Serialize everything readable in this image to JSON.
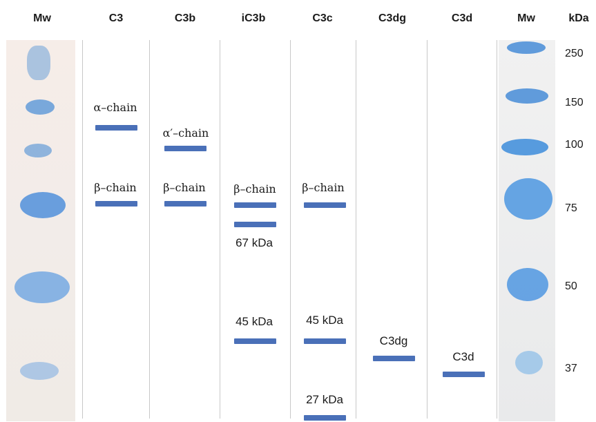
{
  "headers": {
    "mw_left": "Mw",
    "c3": "C3",
    "c3b": "C3b",
    "ic3b": "iC3b",
    "c3c": "C3c",
    "c3dg": "C3dg",
    "c3d": "C3d",
    "mw_right": "Mw",
    "kda": "kDa"
  },
  "band_labels": {
    "c3_alpha": "α–chain",
    "c3_beta": "β–chain",
    "c3b_alpha": "α′–chain",
    "c3b_beta": "β–chain",
    "ic3b_beta": "β–chain",
    "ic3b_67": "67 kDa",
    "ic3b_45": "45 kDa",
    "c3c_beta": "β–chain",
    "c3c_45": "45 kDa",
    "c3c_27": "27 kDa",
    "c3dg": "C3dg",
    "c3d": "C3d"
  },
  "marker_sizes_kda": [
    "250",
    "150",
    "100",
    "75",
    "50",
    "37"
  ],
  "colors": {
    "band": "#4a70b8",
    "gel_stain": "#6aa3dc",
    "separator": "#c8c8c8"
  }
}
